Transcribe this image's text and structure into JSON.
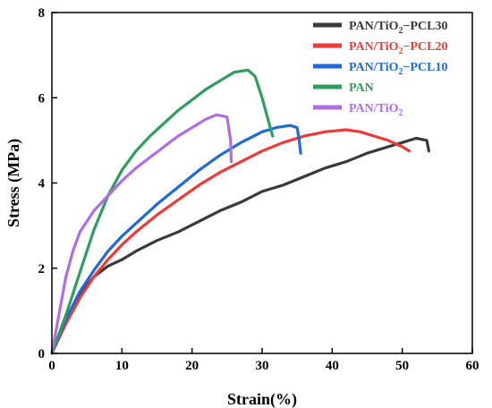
{
  "chart_data": {
    "type": "line",
    "xlabel": "Strain(%)",
    "ylabel": "Stress (MPa)",
    "xlim": [
      0,
      60
    ],
    "ylim": [
      0,
      8
    ],
    "xticks": [
      "0",
      "10",
      "20",
      "30",
      "40",
      "50",
      "60"
    ],
    "yticks": [
      "0",
      "2",
      "4",
      "6",
      "8"
    ],
    "grid": false,
    "legend_position": "top-right",
    "series": [
      {
        "name": "PAN/TiO2−PCL30",
        "label_main": "PAN/TiO",
        "label_sub": "2",
        "label_tail": "−PCL30",
        "color": "#3a3a3a",
        "x": [
          0,
          2,
          4,
          6,
          8,
          10,
          12,
          15,
          18,
          21,
          24,
          27,
          30,
          33,
          36,
          39,
          42,
          45,
          48,
          50,
          52,
          53.5,
          53.8
        ],
        "y": [
          0,
          0.8,
          1.4,
          1.8,
          2.05,
          2.2,
          2.4,
          2.65,
          2.85,
          3.1,
          3.35,
          3.55,
          3.8,
          3.95,
          4.15,
          4.35,
          4.5,
          4.7,
          4.85,
          4.95,
          5.05,
          5.0,
          4.75
        ]
      },
      {
        "name": "PAN/TiO2−PCL20",
        "label_main": "PAN/TiO",
        "label_sub": "2",
        "label_tail": "−PCL20",
        "color": "#f03a3a",
        "x": [
          0,
          2,
          4,
          6,
          8,
          10,
          12,
          15,
          18,
          21,
          24,
          27,
          30,
          33,
          36,
          39,
          42,
          44,
          46,
          48,
          50,
          51
        ],
        "y": [
          0,
          0.7,
          1.3,
          1.8,
          2.2,
          2.55,
          2.85,
          3.25,
          3.6,
          3.95,
          4.25,
          4.5,
          4.75,
          4.95,
          5.1,
          5.2,
          5.25,
          5.2,
          5.1,
          5.0,
          4.85,
          4.75
        ]
      },
      {
        "name": "PAN/TiO2−PCL10",
        "label_main": "PAN/TiO",
        "label_sub": "2",
        "label_tail": "−PCL10",
        "color": "#1f6ad8",
        "x": [
          0,
          2,
          4,
          6,
          8,
          10,
          12,
          15,
          18,
          21,
          24,
          27,
          30,
          32,
          34,
          35,
          35.3,
          35.5
        ],
        "y": [
          0,
          0.8,
          1.45,
          1.95,
          2.4,
          2.75,
          3.05,
          3.5,
          3.9,
          4.3,
          4.65,
          4.95,
          5.2,
          5.3,
          5.35,
          5.3,
          5.0,
          4.7
        ]
      },
      {
        "name": "PAN",
        "label_main": "PAN",
        "label_sub": "",
        "label_tail": "",
        "color": "#2e9e5e",
        "x": [
          0,
          2,
          4,
          6,
          8,
          10,
          12,
          14,
          16,
          18,
          20,
          22,
          24,
          26,
          28,
          29,
          30,
          31,
          31.5
        ],
        "y": [
          0,
          0.9,
          1.9,
          2.9,
          3.7,
          4.3,
          4.75,
          5.1,
          5.4,
          5.7,
          5.95,
          6.2,
          6.4,
          6.6,
          6.65,
          6.5,
          6.0,
          5.4,
          5.1
        ]
      },
      {
        "name": "PAN/TiO2",
        "label_main": "PAN/TiO",
        "label_sub": "2",
        "label_tail": "",
        "color": "#b06ee6",
        "x": [
          0,
          1,
          2,
          3,
          4,
          6,
          8,
          10,
          12,
          14,
          16,
          18,
          20,
          22,
          23.5,
          25,
          25.5,
          25.6
        ],
        "y": [
          0,
          0.9,
          1.8,
          2.4,
          2.85,
          3.35,
          3.7,
          4.05,
          4.35,
          4.6,
          4.85,
          5.1,
          5.3,
          5.5,
          5.6,
          5.55,
          5.0,
          4.5
        ]
      }
    ]
  }
}
